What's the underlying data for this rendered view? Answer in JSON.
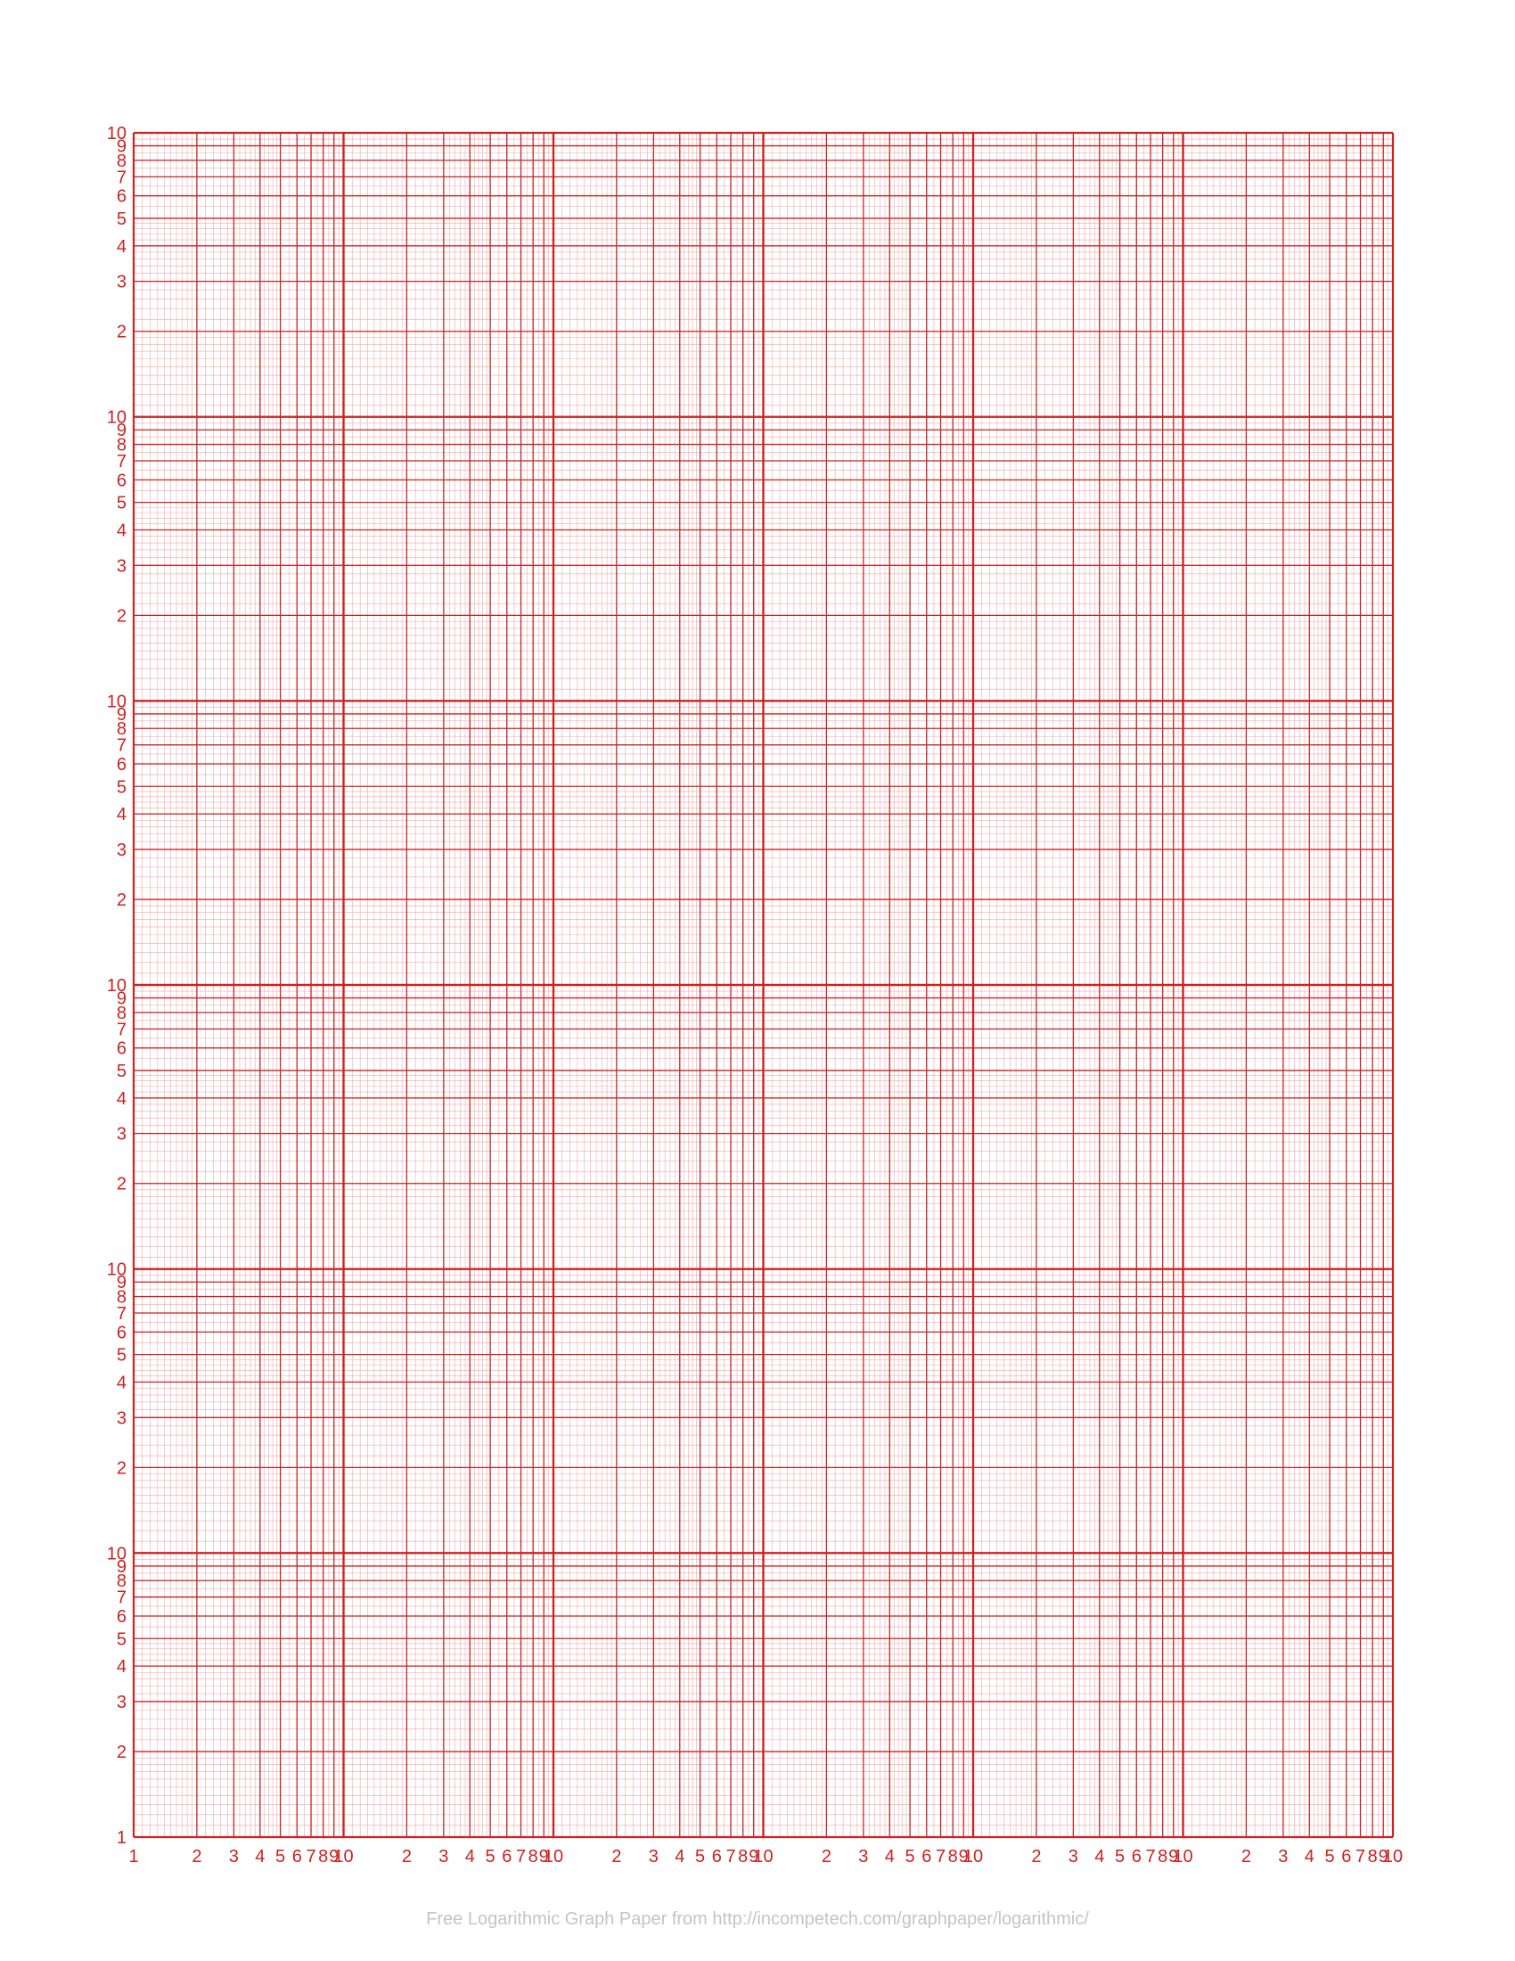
{
  "graph": {
    "type": "log-log graph paper",
    "x_axis": {
      "scale": "log",
      "range": [
        1,
        1000000
      ],
      "cycles": 6
    },
    "y_axis": {
      "scale": "log",
      "range": [
        1,
        1000000
      ],
      "cycles": 6
    },
    "x_tick_labels": [
      "1",
      "2",
      "3",
      "4",
      "5",
      "6",
      "7",
      "8",
      "9",
      "10"
    ],
    "y_tick_labels": [
      "1",
      "2",
      "3",
      "4",
      "5",
      "6",
      "7",
      "8",
      "9",
      "10"
    ],
    "colors": {
      "major": "#cc2222",
      "minor": "#f0a8a8",
      "label": "#cc2222"
    }
  },
  "footer": {
    "text": "Free Logarithmic Graph Paper from http://incompetech.com/graphpaper/logarithmic/"
  }
}
